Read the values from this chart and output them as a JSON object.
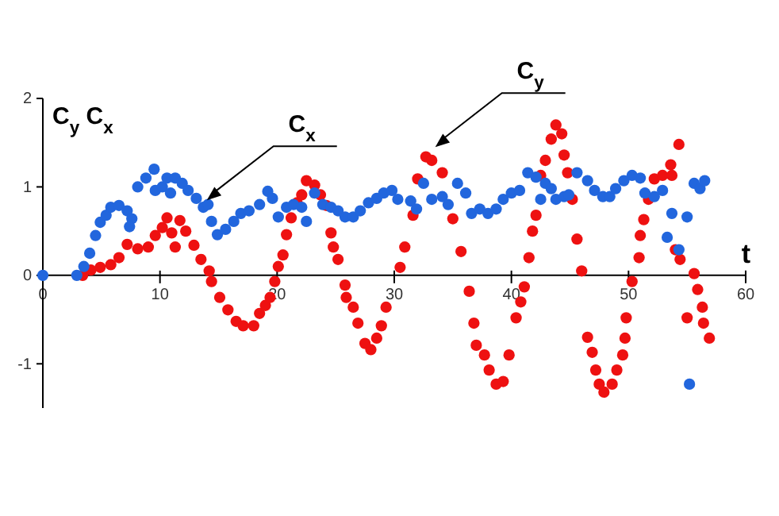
{
  "chart_data": {
    "type": "scatter",
    "xlabel": "t",
    "ylabel": "C$_{y}$  C$_{x}$",
    "xlim": [
      0,
      60
    ],
    "ylim": [
      -1.5,
      2
    ],
    "xticks": [
      0,
      10,
      20,
      30,
      40,
      50,
      60
    ],
    "yticks": [
      -1,
      0,
      1,
      2
    ],
    "grid": false,
    "marker": "circle",
    "annotations": [
      {
        "text": "C$_{x}$",
        "x": 14,
        "y": 0.85
      },
      {
        "text": "C$_{y}$",
        "x": 33.5,
        "y": 1.45
      }
    ],
    "series": [
      {
        "color": "#ee1111",
        "x": [
          3.4,
          4.1,
          4.9,
          5.8,
          6.5,
          7.2,
          8.1,
          9.0,
          9.6,
          10.2,
          10.6,
          11.0,
          11.3,
          11.7,
          12.2,
          12.9,
          13.5,
          14.2,
          14.4,
          15.1,
          15.8,
          16.5,
          17.1,
          18.0,
          18.5,
          19.0,
          19.4,
          19.8,
          20.1,
          20.5,
          20.8,
          21.2,
          21.7,
          22.1,
          22.5,
          23.2,
          23.7,
          24.2,
          24.6,
          24.8,
          25.2,
          25.8,
          25.9,
          26.5,
          26.9,
          27.5,
          28.0,
          28.5,
          28.9,
          29.3,
          30.5,
          30.9,
          31.6,
          32.0,
          32.7,
          33.2,
          34.1,
          35.0,
          35.7,
          36.4,
          36.8,
          37.0,
          37.7,
          38.1,
          38.7,
          39.3,
          39.8,
          40.4,
          40.8,
          41.1,
          41.5,
          41.8,
          42.1,
          42.5,
          42.9,
          43.4,
          43.8,
          44.3,
          44.5,
          44.8,
          45.2,
          45.6,
          46.0,
          46.5,
          46.9,
          47.2,
          47.5,
          47.9,
          48.6,
          49.0,
          49.5,
          49.7,
          49.8,
          50.3,
          50.9,
          51.0,
          51.3,
          51.7,
          52.2,
          52.9,
          53.6,
          53.7,
          54.0,
          54.3,
          54.4,
          55.0,
          55.6,
          55.9,
          56.3,
          56.4,
          56.9
        ],
        "values": [
          0,
          0.06,
          0.09,
          0.12,
          0.2,
          0.35,
          0.3,
          0.32,
          0.45,
          0.54,
          0.65,
          0.48,
          0.32,
          0.62,
          0.5,
          0.34,
          0.18,
          0.05,
          -0.07,
          -0.25,
          -0.39,
          -0.52,
          -0.57,
          -0.57,
          -0.43,
          -0.34,
          -0.25,
          -0.07,
          0.1,
          0.23,
          0.46,
          0.65,
          0.82,
          0.91,
          1.07,
          1.02,
          0.91,
          0.79,
          0.48,
          0.32,
          0.18,
          -0.11,
          -0.25,
          -0.36,
          -0.54,
          -0.77,
          -0.84,
          -0.71,
          -0.57,
          -0.36,
          0.09,
          0.32,
          0.68,
          1.09,
          1.34,
          1.3,
          1.16,
          0.64,
          0.27,
          -0.18,
          -0.54,
          -0.79,
          -0.9,
          -1.07,
          -1.23,
          -1.2,
          -0.9,
          -0.48,
          -0.3,
          -0.13,
          0.2,
          0.5,
          0.68,
          1.13,
          1.3,
          1.54,
          1.7,
          1.6,
          1.36,
          1.16,
          0.86,
          0.41,
          0.05,
          -0.7,
          -0.87,
          -1.07,
          -1.23,
          -1.32,
          -1.23,
          -1.07,
          -0.9,
          -0.71,
          -0.48,
          -0.07,
          0.2,
          0.45,
          0.63,
          0.86,
          1.09,
          1.13,
          1.25,
          1.13,
          0.29,
          1.48,
          0.18,
          -0.48,
          0.02,
          -0.16,
          -0.36,
          -0.54,
          -0.71
        ]
      },
      {
        "color": "#2266dd",
        "x": [
          0,
          2.9,
          3.5,
          4.0,
          4.5,
          4.9,
          5.4,
          5.8,
          6.5,
          7.2,
          7.6,
          7.4,
          8.1,
          8.8,
          9.5,
          9.6,
          10.2,
          10.6,
          10.9,
          11.3,
          11.9,
          12.4,
          13.1,
          13.7,
          14.1,
          14.4,
          14.9,
          15.6,
          16.3,
          16.9,
          17.6,
          18.5,
          19.2,
          19.6,
          20.1,
          20.8,
          21.4,
          22.1,
          22.5,
          23.2,
          23.9,
          24.6,
          25.2,
          25.8,
          26.5,
          27.1,
          27.8,
          28.5,
          29.1,
          29.8,
          30.3,
          31.4,
          31.9,
          32.5,
          33.2,
          34.1,
          34.6,
          35.4,
          36.1,
          36.6,
          37.3,
          38.0,
          38.7,
          39.3,
          40.0,
          40.7,
          41.4,
          42.1,
          42.5,
          42.9,
          43.4,
          43.8,
          44.5,
          44.9,
          45.6,
          46.5,
          47.1,
          47.8,
          48.4,
          48.9,
          49.6,
          50.3,
          51.0,
          51.4,
          52.2,
          52.9,
          53.3,
          53.7,
          54.3,
          55.0,
          55.2,
          55.6,
          56.1,
          56.5
        ],
        "values": [
          0,
          0,
          0.1,
          0.25,
          0.45,
          0.6,
          0.68,
          0.77,
          0.79,
          0.73,
          0.64,
          0.55,
          1.0,
          1.1,
          1.2,
          0.96,
          1.0,
          1.1,
          0.93,
          1.1,
          1.04,
          0.96,
          0.87,
          0.77,
          0.8,
          0.61,
          0.46,
          0.52,
          0.61,
          0.7,
          0.73,
          0.8,
          0.95,
          0.87,
          0.66,
          0.77,
          0.8,
          0.77,
          0.61,
          0.93,
          0.8,
          0.77,
          0.73,
          0.66,
          0.66,
          0.73,
          0.82,
          0.87,
          0.93,
          0.96,
          0.86,
          0.84,
          0.75,
          1.04,
          0.86,
          0.89,
          0.8,
          1.04,
          0.93,
          0.7,
          0.75,
          0.7,
          0.75,
          0.86,
          0.93,
          0.96,
          1.16,
          1.11,
          0.86,
          1.04,
          0.98,
          0.86,
          0.89,
          0.91,
          1.16,
          1.07,
          0.96,
          0.89,
          0.89,
          0.98,
          1.07,
          1.13,
          1.1,
          0.93,
          0.89,
          0.96,
          0.43,
          0.7,
          0.29,
          0.66,
          -1.23,
          1.04,
          0.98,
          1.07
        ]
      }
    ]
  }
}
